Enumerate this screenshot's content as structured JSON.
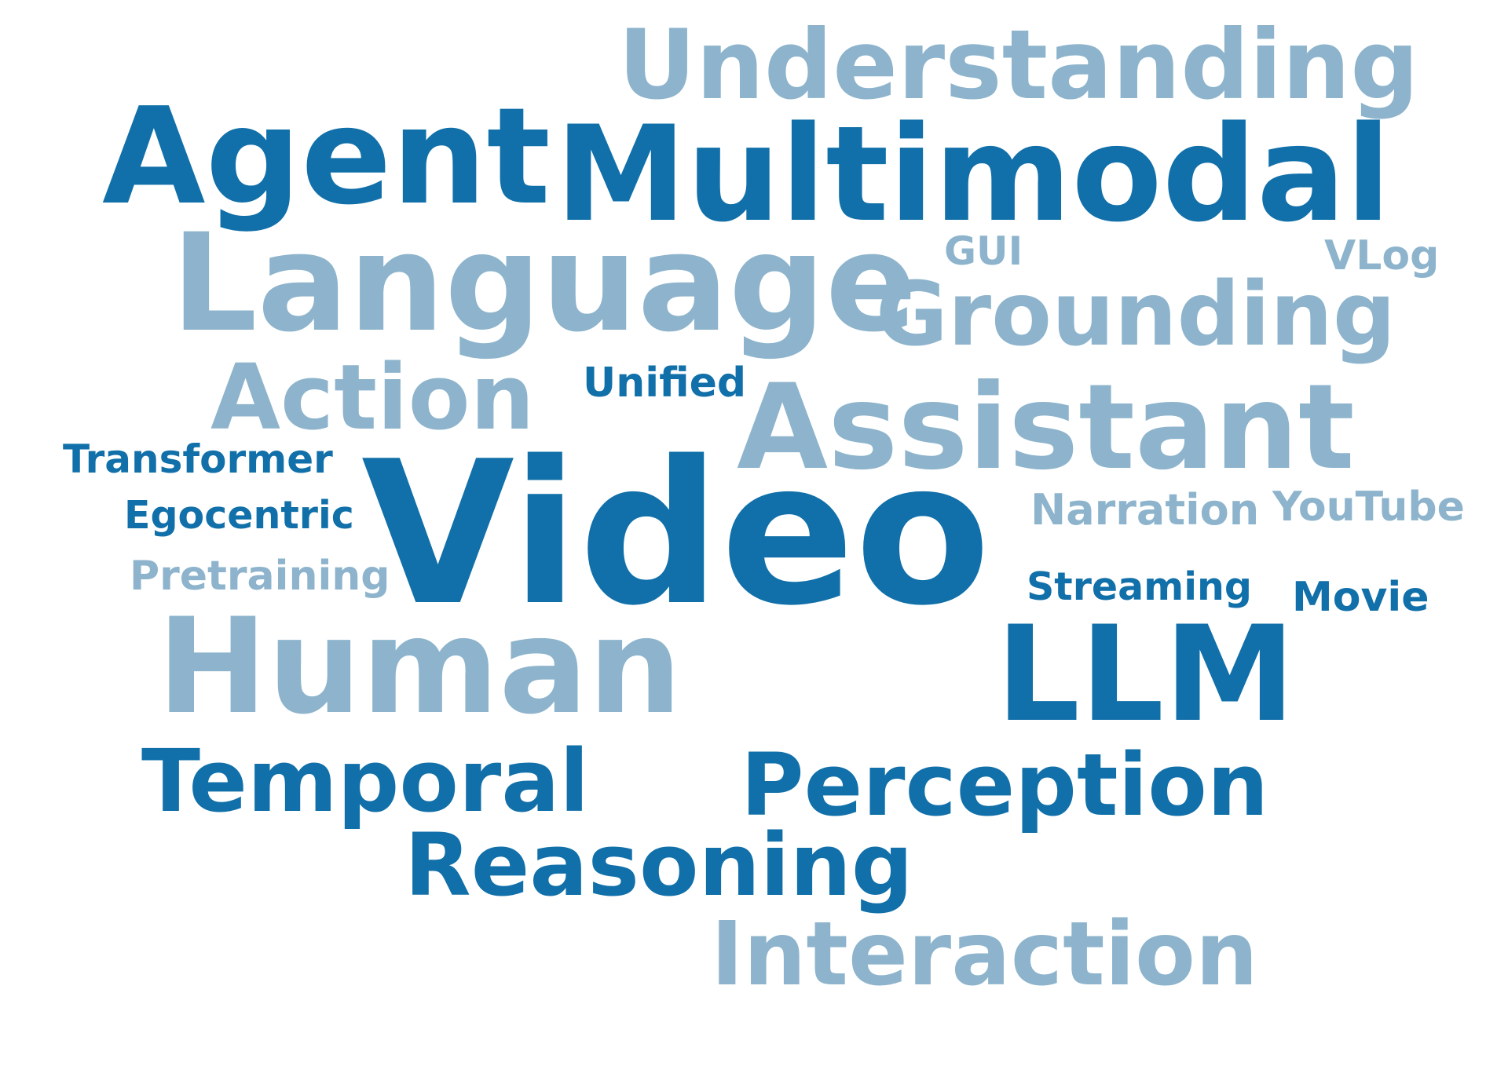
{
  "colors": {
    "dark": "#1170a9",
    "light": "#8db4cc",
    "background": "#ffffff"
  },
  "words": {
    "understanding": "Understanding",
    "agent": "Agent",
    "multimodal": "Multimodal",
    "language": "Language",
    "gui": "GUI",
    "vlog": "VLog",
    "grounding": "Grounding",
    "action": "Action",
    "unified": "Unified",
    "assistant": "Assistant",
    "transformer": "Transformer",
    "video": "Video",
    "egocentric": "Egocentric",
    "narration": "Narration",
    "youtube": "YouTube",
    "pretraining": "Pretraining",
    "streaming": "Streaming",
    "movie": "Movie",
    "human": "Human",
    "llm": "LLM",
    "temporal": "Temporal",
    "perception": "Perception",
    "reasoning": "Reasoning",
    "interaction": "Interaction"
  }
}
